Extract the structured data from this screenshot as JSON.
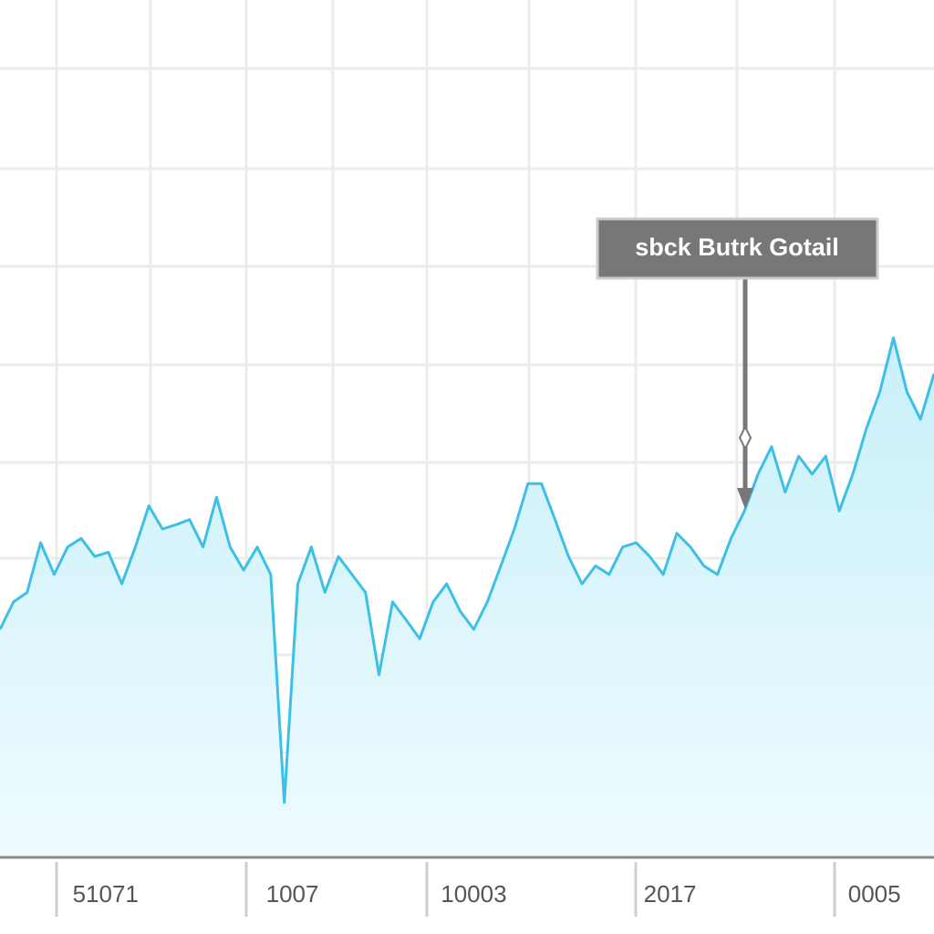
{
  "chart_data": {
    "type": "area",
    "annotation": "sbck Butrk Gotail",
    "x": [
      0,
      1,
      2,
      3,
      4,
      5,
      6,
      7,
      8,
      9,
      10,
      11,
      12,
      13,
      14,
      15,
      16,
      17,
      18,
      19,
      20,
      21,
      22,
      23,
      24,
      25,
      26,
      27,
      28,
      29,
      30,
      31,
      32,
      33,
      34,
      35,
      36,
      37,
      38,
      39,
      40,
      41,
      42,
      43,
      44,
      45,
      46,
      47,
      48,
      49,
      50,
      51,
      52,
      53,
      54,
      55,
      56,
      57,
      58,
      59,
      60,
      61,
      62,
      63,
      64,
      65,
      66,
      67,
      68,
      69
    ],
    "values": [
      26.6,
      29.8,
      30.9,
      36.7,
      33,
      36.2,
      37.2,
      35.1,
      35.6,
      31.9,
      36.2,
      41,
      38.3,
      38.8,
      39.4,
      36.2,
      42,
      36.2,
      33.5,
      36.2,
      33,
      6.4,
      31.9,
      36.2,
      30.9,
      35.1,
      33,
      30.9,
      21.3,
      29.8,
      27.7,
      25.5,
      29.8,
      31.9,
      28.7,
      26.6,
      29.8,
      34,
      38.3,
      43.6,
      43.6,
      39.4,
      35.1,
      31.9,
      34,
      33,
      36.2,
      36.7,
      35.1,
      33,
      37.8,
      36.2,
      34,
      33,
      37.2,
      40.4,
      44.7,
      47.9,
      42.6,
      46.8,
      44.7,
      46.8,
      40.4,
      44.7,
      50,
      54.3,
      60.6,
      54.3,
      51.1,
      56.4
    ],
    "color": "#3dbfe6",
    "xlim": [
      0,
      69
    ],
    "ylim": [
      0,
      100
    ],
    "xticks": [
      {
        "value": 7.8,
        "label": "51071"
      },
      {
        "value": 21.6,
        "label": "1007"
      },
      {
        "value": 35,
        "label": "10003"
      },
      {
        "value": 49.5,
        "label": "2017"
      },
      {
        "value": 64.6,
        "label": "0005"
      }
    ],
    "grid": true
  }
}
